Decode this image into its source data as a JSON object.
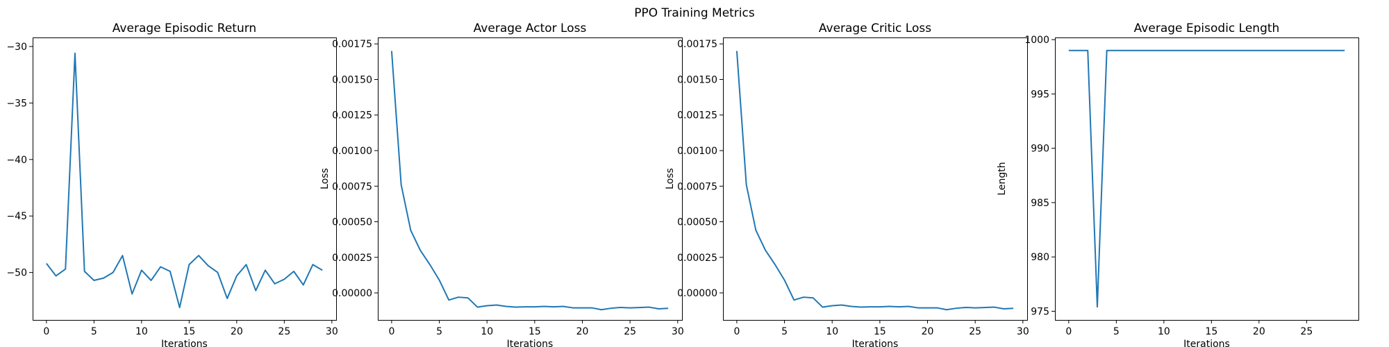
{
  "figure_title": "PPO Training Metrics",
  "chart_data": [
    {
      "type": "line",
      "title": "Average Episodic Return",
      "xlabel": "Iterations",
      "ylabel": "",
      "xlim": [
        -1.45,
        30.45
      ],
      "ylim": [
        -54.2,
        -29.2
      ],
      "xticks": [
        0,
        5,
        10,
        15,
        20,
        25,
        30
      ],
      "yticks": [
        -50,
        -45,
        -40,
        -35,
        -30
      ],
      "grid": false,
      "x": [
        0,
        1,
        2,
        3,
        4,
        5,
        6,
        7,
        8,
        9,
        10,
        11,
        12,
        13,
        14,
        15,
        16,
        17,
        18,
        19,
        20,
        21,
        22,
        23,
        24,
        25,
        26,
        27,
        28,
        29
      ],
      "series": [
        {
          "values": [
            -49.2,
            -50.3,
            -49.7,
            -30.6,
            -49.9,
            -50.7,
            -50.5,
            -50.0,
            -48.5,
            -51.9,
            -49.8,
            -50.7,
            -49.5,
            -49.9,
            -53.1,
            -49.3,
            -48.5,
            -49.4,
            -50.0,
            -52.3,
            -50.3,
            -49.3,
            -51.6,
            -49.8,
            -51.0,
            -50.6,
            -49.9,
            -51.1,
            -49.3,
            -49.8
          ]
        }
      ]
    },
    {
      "type": "line",
      "title": "Average Actor Loss",
      "xlabel": "Iterations",
      "ylabel": "Loss",
      "xlim": [
        -1.45,
        30.45
      ],
      "ylim": [
        -0.00019,
        0.001795
      ],
      "xticks": [
        0,
        5,
        10,
        15,
        20,
        25,
        30
      ],
      "yticks": [
        0.0,
        0.00025,
        0.0005,
        0.00075,
        0.001,
        0.00125,
        0.0015,
        0.00175
      ],
      "ytick_labels": [
        "0.00000",
        "0.00025",
        "0.00050",
        "0.00075",
        "0.00100",
        "0.00125",
        "0.00150",
        "0.00175"
      ],
      "grid": false,
      "x": [
        0,
        1,
        2,
        3,
        4,
        5,
        6,
        7,
        8,
        9,
        10,
        11,
        12,
        13,
        14,
        15,
        16,
        17,
        18,
        19,
        20,
        21,
        22,
        23,
        24,
        25,
        26,
        27,
        28,
        29
      ],
      "series": [
        {
          "values": [
            0.0017,
            0.00076,
            0.00044,
            0.0003,
            0.0002,
            9e-05,
            -5e-05,
            -3e-05,
            -3.5e-05,
            -0.0001,
            -9e-05,
            -8.5e-05,
            -9.5e-05,
            -0.0001,
            -9.8e-05,
            -9.8e-05,
            -9.5e-05,
            -9.8e-05,
            -9.5e-05,
            -0.000105,
            -0.000105,
            -0.000105,
            -0.000118,
            -0.000108,
            -0.000102,
            -0.000105,
            -0.000103,
            -0.0001,
            -0.000112,
            -0.000108
          ]
        }
      ]
    },
    {
      "type": "line",
      "title": "Average Critic Loss",
      "xlabel": "Iterations",
      "ylabel": "Loss",
      "xlim": [
        -1.45,
        30.45
      ],
      "ylim": [
        -0.00019,
        0.001795
      ],
      "xticks": [
        0,
        5,
        10,
        15,
        20,
        25,
        30
      ],
      "yticks": [
        0.0,
        0.00025,
        0.0005,
        0.00075,
        0.001,
        0.00125,
        0.0015,
        0.00175
      ],
      "ytick_labels": [
        "0.00000",
        "0.00025",
        "0.00050",
        "0.00075",
        "0.00100",
        "0.00125",
        "0.00150",
        "0.00175"
      ],
      "grid": false,
      "x": [
        0,
        1,
        2,
        3,
        4,
        5,
        6,
        7,
        8,
        9,
        10,
        11,
        12,
        13,
        14,
        15,
        16,
        17,
        18,
        19,
        20,
        21,
        22,
        23,
        24,
        25,
        26,
        27,
        28,
        29
      ],
      "series": [
        {
          "values": [
            0.0017,
            0.00076,
            0.00044,
            0.0003,
            0.0002,
            9e-05,
            -5e-05,
            -3e-05,
            -3.5e-05,
            -0.0001,
            -9e-05,
            -8.5e-05,
            -9.5e-05,
            -0.0001,
            -9.8e-05,
            -9.8e-05,
            -9.5e-05,
            -9.8e-05,
            -9.5e-05,
            -0.000105,
            -0.000105,
            -0.000105,
            -0.000118,
            -0.000108,
            -0.000102,
            -0.000105,
            -0.000103,
            -0.0001,
            -0.000112,
            -0.000108
          ]
        }
      ]
    },
    {
      "type": "line",
      "title": "Average Episodic Length",
      "xlabel": "Iterations",
      "ylabel": "Length",
      "xlim": [
        -1.45,
        30.45
      ],
      "ylim": [
        974.2,
        1000.2
      ],
      "xticks": [
        0,
        5,
        10,
        15,
        20,
        25
      ],
      "yticks": [
        975,
        980,
        985,
        990,
        995,
        1000
      ],
      "grid": false,
      "x": [
        0,
        1,
        2,
        3,
        4,
        5,
        6,
        7,
        8,
        9,
        10,
        11,
        12,
        13,
        14,
        15,
        16,
        17,
        18,
        19,
        20,
        21,
        22,
        23,
        24,
        25,
        26,
        27,
        28,
        29
      ],
      "series": [
        {
          "values": [
            999,
            999,
            999,
            975.4,
            999,
            999,
            999,
            999,
            999,
            999,
            999,
            999,
            999,
            999,
            999,
            999,
            999,
            999,
            999,
            999,
            999,
            999,
            999,
            999,
            999,
            999,
            999,
            999,
            999,
            999
          ]
        }
      ]
    }
  ]
}
